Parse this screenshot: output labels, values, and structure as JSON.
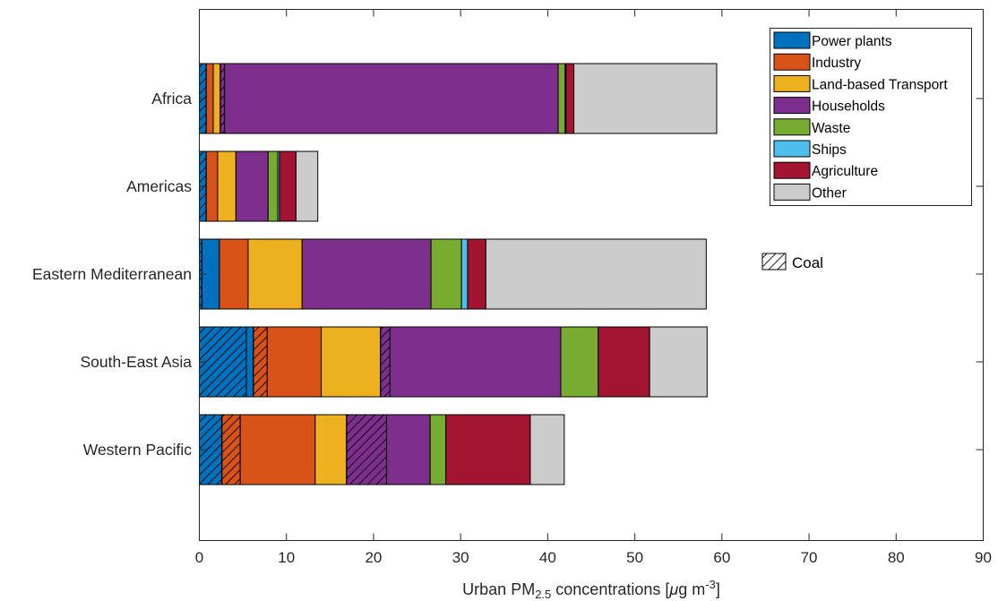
{
  "chart_data": {
    "type": "bar",
    "orientation": "horizontal",
    "stacked": true,
    "categories": [
      "Africa",
      "Americas",
      "Eastern Mediterranean",
      "South-East Asia",
      "Western Pacific"
    ],
    "xlim": [
      0,
      90
    ],
    "xticks": [
      0,
      10,
      20,
      30,
      40,
      50,
      60,
      70,
      80,
      90
    ],
    "xlabel": {
      "prefix": "Urban PM",
      "sub": "2.5",
      "middle": " concentrations [",
      "mu": "μ",
      "unit": "g m",
      "sup": "-3",
      "suffix": "]"
    },
    "grid": false,
    "legend_position": "top-right",
    "legend": [
      {
        "name": "Power plants",
        "color": "#0072BD"
      },
      {
        "name": "Industry",
        "color": "#D95319"
      },
      {
        "name": "Land-based Transport",
        "color": "#EDB120"
      },
      {
        "name": "Households",
        "color": "#7E2F8E"
      },
      {
        "name": "Waste",
        "color": "#77AC30"
      },
      {
        "name": "Ships",
        "color": "#4DBEEE"
      },
      {
        "name": "Agriculture",
        "color": "#A2142F"
      },
      {
        "name": "Other",
        "color": "#CCCCCC"
      }
    ],
    "coal_label": "Coal",
    "segments": {
      "Africa": [
        {
          "source": "Power plants",
          "value": 0.8,
          "coal": true
        },
        {
          "source": "Industry",
          "value": 0.8,
          "coal": false
        },
        {
          "source": "Land-based Transport",
          "value": 0.8,
          "coal": false
        },
        {
          "source": "Households",
          "value": 0.5,
          "coal": true
        },
        {
          "source": "Households",
          "value": 38.3,
          "coal": false
        },
        {
          "source": "Waste",
          "value": 0.8,
          "coal": false
        },
        {
          "source": "Ships",
          "value": 0.1,
          "coal": false
        },
        {
          "source": "Agriculture",
          "value": 0.9,
          "coal": false
        },
        {
          "source": "Other",
          "value": 16.4,
          "coal": false
        }
      ],
      "Americas": [
        {
          "source": "Power plants",
          "value": 0.8,
          "coal": true
        },
        {
          "source": "Industry",
          "value": 1.3,
          "coal": false
        },
        {
          "source": "Land-based Transport",
          "value": 2.1,
          "coal": false
        },
        {
          "source": "Households",
          "value": 3.7,
          "coal": false
        },
        {
          "source": "Waste",
          "value": 1.1,
          "coal": false
        },
        {
          "source": "Ships",
          "value": 0.2,
          "coal": false
        },
        {
          "source": "Agriculture",
          "value": 1.9,
          "coal": false
        },
        {
          "source": "Other",
          "value": 2.5,
          "coal": false
        }
      ],
      "Eastern Mediterranean": [
        {
          "source": "Power plants",
          "value": 0.3,
          "coal": true
        },
        {
          "source": "Power plants",
          "value": 2.0,
          "coal": false
        },
        {
          "source": "Industry",
          "value": 3.3,
          "coal": false
        },
        {
          "source": "Land-based Transport",
          "value": 6.2,
          "coal": false
        },
        {
          "source": "Households",
          "value": 14.8,
          "coal": false
        },
        {
          "source": "Waste",
          "value": 3.5,
          "coal": false
        },
        {
          "source": "Ships",
          "value": 0.7,
          "coal": false
        },
        {
          "source": "Agriculture",
          "value": 2.1,
          "coal": false
        },
        {
          "source": "Other",
          "value": 25.3,
          "coal": false
        }
      ],
      "South-East Asia": [
        {
          "source": "Power plants",
          "value": 5.4,
          "coal": true
        },
        {
          "source": "Power plants",
          "value": 0.8,
          "coal": false
        },
        {
          "source": "Industry",
          "value": 1.6,
          "coal": true
        },
        {
          "source": "Industry",
          "value": 6.2,
          "coal": false
        },
        {
          "source": "Land-based Transport",
          "value": 6.8,
          "coal": false
        },
        {
          "source": "Households",
          "value": 1.1,
          "coal": true
        },
        {
          "source": "Households",
          "value": 19.6,
          "coal": false
        },
        {
          "source": "Waste",
          "value": 4.3,
          "coal": false
        },
        {
          "source": "Agriculture",
          "value": 5.9,
          "coal": false
        },
        {
          "source": "Other",
          "value": 6.6,
          "coal": false
        }
      ],
      "Western Pacific": [
        {
          "source": "Power plants",
          "value": 2.6,
          "coal": true
        },
        {
          "source": "Industry",
          "value": 2.1,
          "coal": true
        },
        {
          "source": "Industry",
          "value": 8.6,
          "coal": false
        },
        {
          "source": "Land-based Transport",
          "value": 3.6,
          "coal": false
        },
        {
          "source": "Households",
          "value": 4.6,
          "coal": true
        },
        {
          "source": "Households",
          "value": 5.0,
          "coal": false
        },
        {
          "source": "Waste",
          "value": 1.8,
          "coal": false
        },
        {
          "source": "Agriculture",
          "value": 9.7,
          "coal": false
        },
        {
          "source": "Other",
          "value": 3.9,
          "coal": false
        }
      ]
    }
  }
}
